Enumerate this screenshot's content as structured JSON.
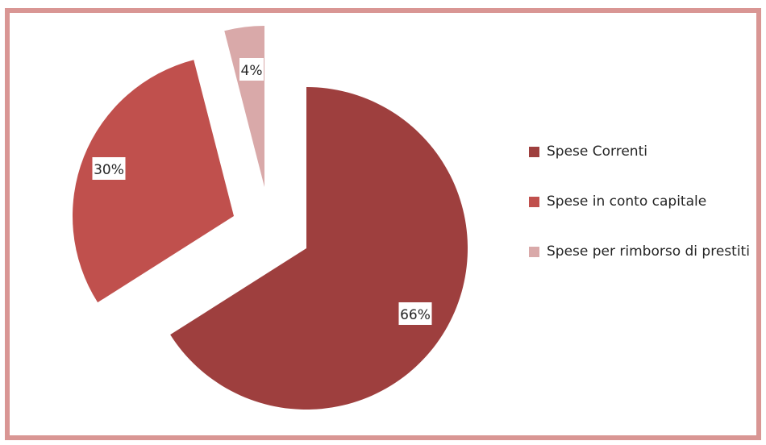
{
  "chart_data": {
    "type": "pie",
    "categories": [
      "Spese Correnti",
      "Spese in conto capitale",
      "Spese per rimborso di prestiti"
    ],
    "values": [
      66,
      30,
      4
    ],
    "labels": [
      "66%",
      "30%",
      "4%"
    ],
    "colors": [
      "#9e3f3e",
      "#c0504d",
      "#d9a9a9"
    ],
    "exploded": true,
    "start_angle_deg": 0,
    "direction": "clockwise",
    "legend_position": "right",
    "frame_color": "#d99694"
  }
}
